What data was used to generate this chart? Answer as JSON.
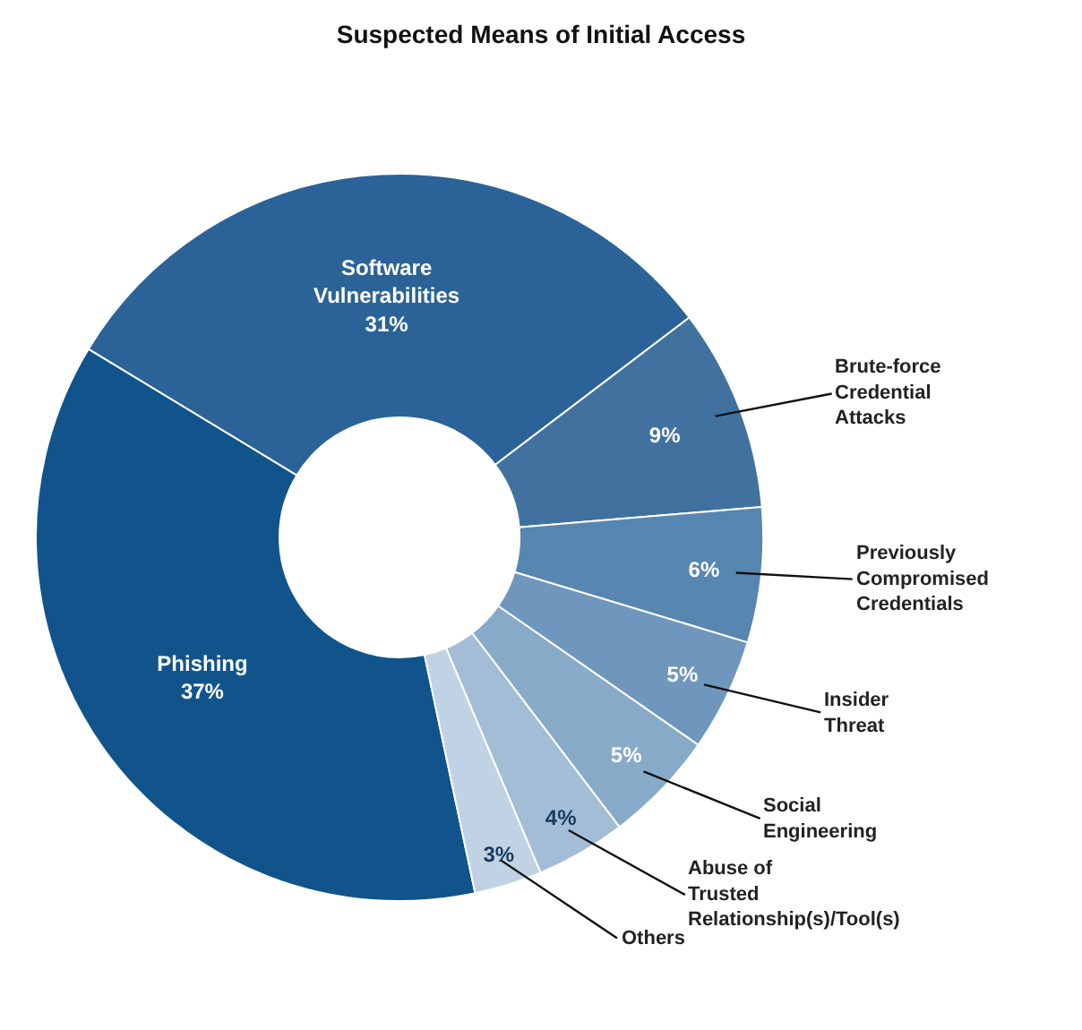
{
  "chart_data": {
    "type": "donut",
    "title": "Suspected Means of Initial Access",
    "categories": [
      "Phishing",
      "Software Vulnerabilities",
      "Brute-force Credential Attacks",
      "Previously Compromised Credentials",
      "Insider Threat",
      "Social Engineering",
      "Abuse of Trusted Relationship(s)/Tool(s)",
      "Others"
    ],
    "values": [
      37,
      31,
      9,
      6,
      5,
      5,
      4,
      3
    ],
    "value_labels": [
      "37%",
      "31%",
      "9%",
      "6%",
      "5%",
      "5%",
      "4%",
      "3%"
    ],
    "colors": [
      "#11548c",
      "#2b6398",
      "#41729f",
      "#5786b0",
      "#6f97bd",
      "#88aac9",
      "#a3bdd6",
      "#c0d2e4"
    ],
    "legend": false
  }
}
